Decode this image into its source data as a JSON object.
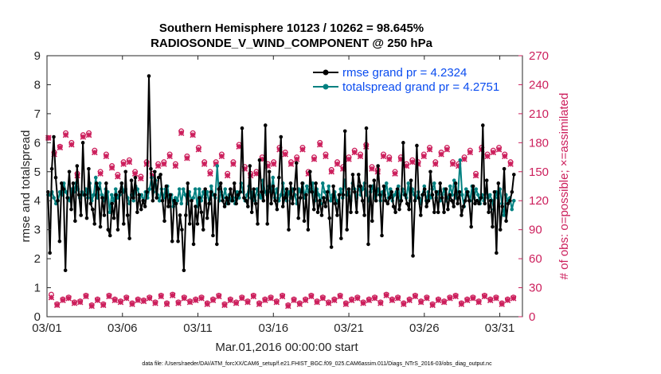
{
  "chart_data": {
    "type": "line",
    "title_line1": "Southern Hemisphere 10123 / 10262 = 98.645%",
    "title_line2": "RADIOSONDE_V_WIND_COMPONENT @ 250 hPa",
    "xlabel": "Mar.01,2016 00:00:00 start",
    "ylabel": "rmse and totalspread",
    "y2label": "# of obs: o=possible; ×=assimilated",
    "footnote": "data file: /Users/raeder/DAI/ATM_forcXX/CAM6_setup/f.e21.FHIST_BGC.f09_025.CAM6assim.011/Diags_NTrS_2016-03/obs_diag_output.nc",
    "xlim": [
      0,
      31.5
    ],
    "ylim": [
      0,
      9
    ],
    "y2lim": [
      0,
      270
    ],
    "x_ticks": [
      0,
      5,
      10,
      15,
      20,
      25,
      30
    ],
    "x_tick_labels": [
      "03/01",
      "03/06",
      "03/11",
      "03/16",
      "03/21",
      "03/26",
      "03/31"
    ],
    "y_ticks": [
      0,
      1,
      2,
      3,
      4,
      5,
      6,
      7,
      8,
      9
    ],
    "y_tick_labels": [
      "0",
      "1",
      "2",
      "3",
      "4",
      "5",
      "6",
      "7",
      "8",
      "9"
    ],
    "y2_ticks": [
      0,
      30,
      60,
      90,
      120,
      150,
      180,
      210,
      240,
      270
    ],
    "y2_tick_labels": [
      "0",
      "30",
      "60",
      "90",
      "120",
      "150",
      "180",
      "210",
      "240",
      "270"
    ],
    "legend_position": "top-right",
    "colors": {
      "rmse": "#000000",
      "totalspread": "#008080",
      "obs": "#cc1f5c",
      "legend_text": "#0a4cf0"
    },
    "series": [
      {
        "name": "rmse grand pr = 4.2324",
        "key": "rmse",
        "values": [
          4.3,
          2.2,
          5.1,
          6.2,
          4.8,
          4.0,
          2.6,
          4.6,
          4.4,
          1.6,
          4.1,
          5.0,
          3.7,
          4.6,
          3.3,
          5.2,
          4.2,
          3.5,
          6.0,
          4.2,
          3.4,
          5.1,
          3.9,
          3.7,
          3.2,
          4.6,
          4.4,
          3.1,
          4.1,
          3.5,
          4.6,
          3.0,
          2.8,
          3.9,
          3.4,
          4.2,
          3.0,
          4.3,
          4.6,
          3.2,
          5.0,
          3.5,
          2.7,
          4.7,
          4.1,
          4.8,
          3.6,
          4.2,
          3.7,
          4.0,
          3.8,
          4.3,
          8.3,
          5.1,
          4.0,
          5.0,
          4.1,
          4.8,
          4.9,
          4.0,
          3.3,
          4.5,
          3.8,
          4.2,
          2.6,
          4.0,
          3.9,
          2.6,
          3.5,
          3.0,
          1.6,
          3.5,
          4.6,
          3.2,
          4.0,
          2.5,
          3.8,
          3.2,
          4.1,
          3.6,
          3.0,
          4.4,
          3.4,
          3.9,
          4.3,
          2.8,
          4.2,
          2.5,
          4.4,
          4.6,
          4.0,
          3.8,
          4.1,
          3.9,
          4.4,
          4.0,
          4.6,
          3.9,
          4.2,
          4.3,
          6.5,
          4.1,
          4.0,
          3.8,
          5.2,
          3.6,
          4.4,
          3.9,
          3.2,
          5.4,
          4.3,
          4.0,
          6.6,
          3.2,
          5.0,
          3.9,
          4.5,
          4.0,
          3.7,
          4.8,
          6.2,
          3.8,
          4.1,
          4.4,
          3.0,
          4.6,
          3.9,
          4.4,
          5.3,
          3.4,
          4.1,
          4.6,
          3.3,
          4.2,
          3.0,
          5.0,
          4.3,
          3.7,
          4.6,
          3.6,
          4.0,
          3.5,
          4.1,
          3.8,
          4.3,
          3.4,
          2.4,
          4.5,
          3.9,
          3.5,
          4.2,
          2.7,
          4.2,
          6.4,
          3.0,
          4.4,
          3.6,
          4.9,
          4.3,
          3.6,
          4.9,
          4.5,
          4.0,
          3.5,
          6.5,
          2.5,
          4.5,
          3.3,
          4.7,
          4.0,
          5.2,
          4.2,
          2.8,
          4.5,
          4.0,
          3.9,
          4.1,
          4.3,
          3.8,
          3.6,
          4.4,
          3.7,
          4.0,
          6.0,
          4.2,
          3.9,
          3.7,
          4.7,
          2.1,
          4.0,
          5.9,
          4.1,
          3.5,
          4.2,
          4.4,
          3.8,
          4.0,
          5.0,
          4.2,
          3.6,
          4.3,
          3.6,
          4.6,
          4.1,
          3.6,
          4.4,
          3.7,
          4.2,
          4.0,
          3.8,
          4.6,
          3.9,
          4.3,
          3.5,
          3.8,
          4.0,
          4.3,
          4.0,
          3.1,
          4.5,
          3.9,
          4.0,
          3.9,
          4.1,
          6.6,
          3.9,
          4.7,
          3.6,
          4.0,
          3.1,
          4.3,
          2.2,
          4.6,
          3.0,
          3.8,
          5.1,
          3.3,
          3.9,
          4.0,
          4.3,
          4.9
        ]
      },
      {
        "name": "totalspread grand pr = 4.2751",
        "key": "totalspread",
        "values": [
          4.2,
          4.2,
          4.3,
          4.1,
          3.9,
          4.0,
          4.3,
          4.2,
          4.6,
          4.3,
          4.1,
          4.0,
          4.4,
          4.3,
          4.6,
          4.4,
          4.1,
          4.3,
          4.2,
          4.4,
          4.1,
          4.6,
          4.0,
          4.2,
          4.8,
          4.1,
          4.6,
          4.2,
          4.0,
          4.4,
          4.3,
          3.6,
          4.2,
          4.0,
          4.4,
          4.1,
          4.2,
          4.6,
          4.3,
          4.4,
          4.1,
          3.9,
          4.2,
          4.0,
          4.5,
          4.4,
          4.1,
          4.2,
          4.0,
          4.3,
          4.1,
          4.4,
          4.8,
          4.3,
          4.7,
          4.2,
          4.0,
          4.4,
          4.1,
          4.4,
          4.5,
          4.0,
          4.2,
          3.8,
          4.1,
          4.0,
          4.4,
          3.9,
          4.4,
          4.2,
          3.9,
          4.3,
          4.0,
          4.1,
          4.4,
          3.8,
          4.4,
          4.0,
          4.3,
          4.1,
          4.3,
          3.9,
          4.5,
          4.2,
          4.1,
          5.2,
          4.0,
          4.3,
          4.1,
          4.4,
          3.9,
          4.2,
          4.0,
          4.1,
          3.9,
          4.3,
          4.1,
          4.6,
          4.3,
          4.0,
          4.2,
          4.5,
          4.1,
          4.3,
          4.0,
          4.4,
          4.2,
          4.1,
          4.7,
          4.3,
          4.2,
          4.5,
          4.3,
          4.8,
          4.1,
          4.4,
          4.0,
          4.2,
          4.6,
          4.2,
          4.0,
          4.3,
          4.1,
          4.4,
          4.2,
          3.9,
          4.4,
          4.3,
          4.6,
          4.1,
          4.5,
          4.3,
          4.4,
          4.6,
          4.0,
          4.4,
          4.2,
          3.9,
          4.6,
          4.3,
          4.1,
          4.5,
          4.0,
          4.2,
          4.3,
          4.0,
          3.9,
          4.4,
          4.1,
          4.7,
          4.2,
          4.3,
          4.0,
          4.6,
          4.4,
          4.1,
          4.5,
          4.2,
          4.4,
          4.6,
          4.2,
          4.0,
          4.3,
          4.5,
          4.1,
          4.2,
          4.4,
          4.0,
          4.3,
          4.2,
          4.6,
          4.1,
          4.4,
          4.0,
          4.2,
          4.3,
          4.5,
          4.0,
          4.4,
          4.2,
          4.1,
          4.6,
          4.0,
          4.4,
          4.2,
          4.1,
          4.3,
          3.9,
          4.2,
          4.5,
          4.0,
          4.3,
          4.1,
          4.4,
          4.6,
          4.1,
          4.3,
          4.0,
          4.2,
          4.4,
          4.0,
          4.1,
          4.5,
          4.2,
          4.7,
          4.1,
          4.3,
          5.4,
          4.2,
          3.8,
          4.4,
          4.3,
          4.0,
          4.5,
          4.1,
          4.4,
          4.2,
          3.9,
          4.2,
          4.0,
          4.4,
          4.1,
          4.2,
          4.0,
          3.7,
          4.3,
          4.1,
          4.4,
          3.9,
          3.5,
          4.2,
          4.0,
          4.1,
          3.7,
          4.0
        ]
      }
    ],
    "obs_possible": [
      185,
      23,
      170,
      13,
      176,
      18,
      190,
      20,
      180,
      15,
      148,
      16,
      188,
      22,
      190,
      12,
      172,
      18,
      150,
      13,
      168,
      22,
      156,
      18,
      147,
      16,
      160,
      20,
      162,
      14,
      150,
      18,
      145,
      17,
      160,
      20,
      148,
      15,
      158,
      22,
      160,
      14,
      168,
      23,
      158,
      15,
      192,
      20,
      166,
      16,
      190,
      18,
      175,
      20,
      160,
      14,
      150,
      18,
      160,
      22,
      168,
      13,
      148,
      18,
      160,
      15,
      178,
      20,
      155,
      16,
      148,
      22,
      150,
      14,
      165,
      18,
      158,
      20,
      160,
      16,
      175,
      22,
      170,
      12,
      160,
      18,
      165,
      14,
      175,
      18,
      150,
      22,
      165,
      16,
      180,
      20,
      168,
      15,
      152,
      18,
      160,
      22,
      155,
      14,
      165,
      18,
      172,
      20,
      168,
      15,
      178,
      18,
      155,
      20,
      152,
      15,
      168,
      23,
      165,
      18,
      150,
      20,
      165,
      14,
      158,
      18,
      162,
      22,
      160,
      16,
      168,
      20,
      175,
      13,
      160,
      18,
      170,
      16,
      175,
      20,
      160,
      22,
      158,
      14,
      165,
      18,
      172,
      20,
      148,
      16,
      175,
      22,
      168,
      18,
      172,
      20,
      175,
      14,
      168,
      18,
      160,
      20
    ],
    "obs_assimilated": [
      185,
      20,
      168,
      12,
      175,
      17,
      188,
      19,
      178,
      14,
      146,
      15,
      186,
      21,
      188,
      11,
      170,
      17,
      148,
      12,
      166,
      21,
      154,
      17,
      145,
      15,
      158,
      19,
      160,
      13,
      148,
      17,
      143,
      16,
      158,
      19,
      146,
      14,
      156,
      21,
      158,
      13,
      166,
      22,
      156,
      14,
      190,
      19,
      164,
      15,
      188,
      17,
      173,
      19,
      158,
      13,
      148,
      17,
      158,
      21,
      166,
      12,
      146,
      17,
      158,
      14,
      176,
      19,
      153,
      15,
      146,
      21,
      148,
      13,
      163,
      17,
      156,
      19,
      158,
      15,
      173,
      21,
      168,
      11,
      158,
      17,
      163,
      13,
      173,
      17,
      148,
      21,
      163,
      15,
      178,
      19,
      166,
      14,
      150,
      17,
      158,
      21,
      153,
      13,
      163,
      17,
      170,
      19,
      166,
      14,
      176,
      17,
      153,
      19,
      150,
      14,
      166,
      22,
      163,
      17,
      148,
      19,
      163,
      13,
      156,
      17,
      160,
      21,
      158,
      15,
      166,
      19,
      173,
      12,
      158,
      17,
      168,
      15,
      173,
      19,
      158,
      21,
      156,
      13,
      163,
      17,
      170,
      19,
      146,
      15,
      173,
      21,
      166,
      17,
      170,
      19,
      173,
      13,
      166,
      17,
      158,
      19
    ]
  }
}
